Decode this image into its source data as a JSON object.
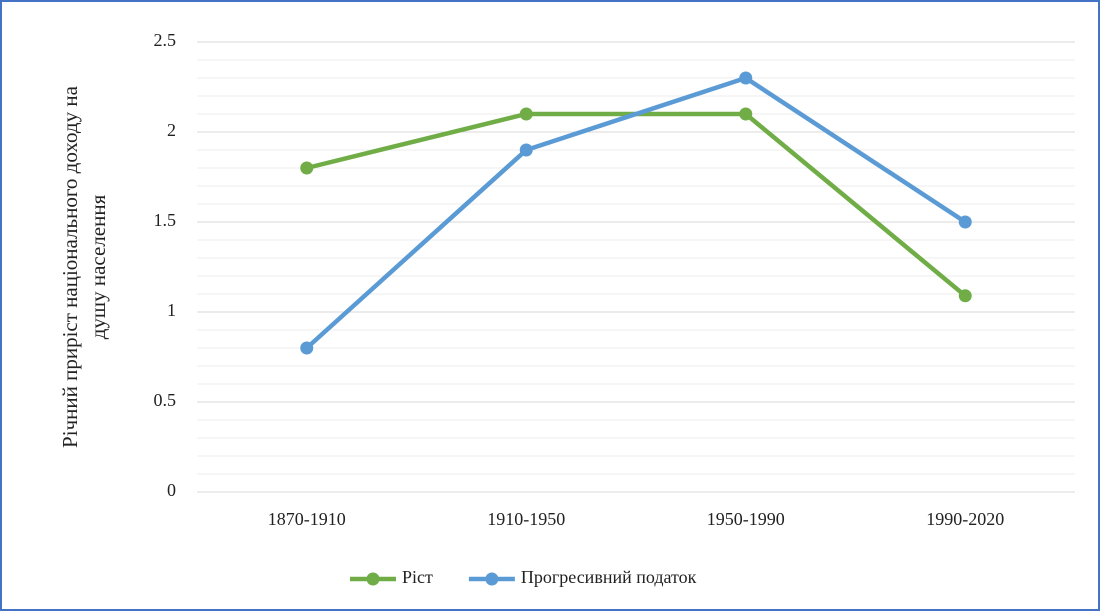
{
  "chart_data": {
    "type": "line",
    "ylabel": [
      "Річний приріст національного доходу на",
      "душу населення"
    ],
    "categories": [
      "1870-1910",
      "1910-1950",
      "1950-1990",
      "1990-2020"
    ],
    "series": [
      {
        "name": "Ріст",
        "color": "#70ad47",
        "values": [
          1.8,
          2.1,
          2.1,
          1.09
        ]
      },
      {
        "name": "Прогресивний податок",
        "color": "#5b9bd5",
        "values": [
          0.8,
          1.9,
          2.3,
          1.5
        ]
      }
    ],
    "ylim": [
      0,
      2.5
    ],
    "yticks": [
      0,
      0.5,
      1,
      1.5,
      2,
      2.5
    ],
    "minor_yticks": [
      0.1,
      0.2,
      0.3,
      0.4,
      0.6,
      0.7,
      0.8,
      0.9,
      1.1,
      1.2,
      1.3,
      1.4,
      1.6,
      1.7,
      1.8,
      1.9,
      2.1,
      2.2,
      2.3,
      2.4
    ],
    "grid": true,
    "legend": "bottom"
  }
}
